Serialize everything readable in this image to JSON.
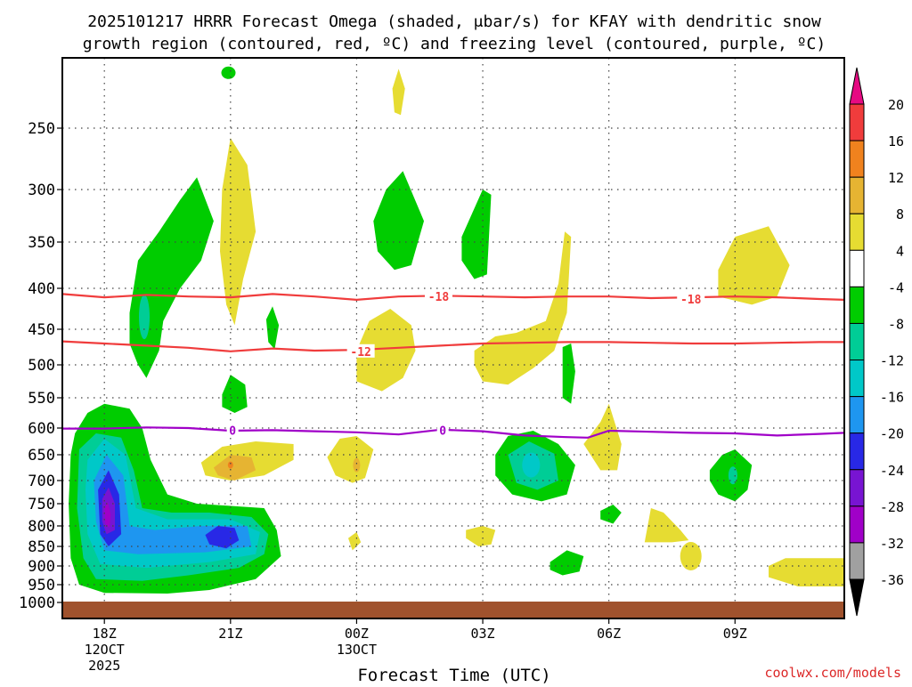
{
  "chart_data": {
    "type": "contour",
    "title_line1": "2025101217 HRRR Forecast Omega (shaded, μbar/s) for KFAY with dendritic snow",
    "title_line2": "growth region (contoured, red, ºC) and freezing level (contoured, purple, ºC)",
    "xlabel": "Forecast Time (UTC)",
    "credit": "coolwx.com/models",
    "xlim": [
      17,
      35.6
    ],
    "y_levels": [
      250,
      300,
      350,
      400,
      450,
      500,
      550,
      600,
      650,
      700,
      750,
      800,
      850,
      900,
      950,
      1000
    ],
    "y_grid_levels": [
      250,
      300,
      350,
      400,
      450,
      500,
      550,
      600,
      650,
      700,
      750,
      800,
      850,
      900,
      950
    ],
    "x_ticks": [
      {
        "hour": 18,
        "lines": [
          "18Z",
          "12OCT",
          "2025"
        ]
      },
      {
        "hour": 21,
        "lines": [
          "21Z"
        ]
      },
      {
        "hour": 24,
        "lines": [
          "00Z",
          "13OCT"
        ]
      },
      {
        "hour": 27,
        "lines": [
          "03Z"
        ]
      },
      {
        "hour": 30,
        "lines": [
          "06Z"
        ]
      },
      {
        "hour": 33,
        "lines": [
          "09Z"
        ]
      }
    ],
    "colorbar": {
      "labels": [
        "20",
        "16",
        "12",
        "8",
        "4",
        "-4",
        "-8",
        "-12",
        "-16",
        "-20",
        "-24",
        "-28",
        "-32",
        "-36"
      ],
      "bands": [
        {
          "from": 16,
          "to": 20,
          "color": "#f03c3c"
        },
        {
          "from": 12,
          "to": 16,
          "color": "#f0821e"
        },
        {
          "from": 8,
          "to": 12,
          "color": "#e6b432"
        },
        {
          "from": 4,
          "to": 8,
          "color": "#e6dc32"
        },
        {
          "from": -4,
          "to": 4,
          "color": "#ffffff"
        },
        {
          "from": -8,
          "to": -4,
          "color": "#00cc00"
        },
        {
          "from": -12,
          "to": -8,
          "color": "#00cd96"
        },
        {
          "from": -16,
          "to": -12,
          "color": "#00c8c8"
        },
        {
          "from": -20,
          "to": -16,
          "color": "#1e96f0"
        },
        {
          "from": -24,
          "to": -20,
          "color": "#2828e6"
        },
        {
          "from": -28,
          "to": -24,
          "color": "#7814d2"
        },
        {
          "from": -32,
          "to": -28,
          "color": "#a000c8"
        },
        {
          "from": -36,
          "to": -32,
          "color": "#a0a0a0"
        }
      ],
      "top_arrow_color": "#e60a82",
      "bottom_arrow_color": "#000000"
    },
    "contours": [
      {
        "label": "-18",
        "color": "#f03c3c",
        "label_positions": [
          [
            25.95,
            410
          ],
          [
            31.95,
            413
          ]
        ],
        "points": [
          [
            17,
            407
          ],
          [
            18,
            411
          ],
          [
            19,
            408
          ],
          [
            20,
            410
          ],
          [
            21,
            411
          ],
          [
            22,
            407
          ],
          [
            23,
            410
          ],
          [
            24,
            414
          ],
          [
            25,
            410
          ],
          [
            26,
            409
          ],
          [
            27,
            410
          ],
          [
            28,
            411
          ],
          [
            29,
            410
          ],
          [
            30,
            410
          ],
          [
            31,
            412
          ],
          [
            32,
            411
          ],
          [
            33,
            410
          ],
          [
            34,
            411
          ],
          [
            35,
            413
          ],
          [
            35.6,
            414
          ]
        ]
      },
      {
        "label": "-12",
        "color": "#f03c3c",
        "label_positions": [
          [
            24.1,
            481
          ]
        ],
        "points": [
          [
            17,
            467
          ],
          [
            18,
            470
          ],
          [
            19,
            473
          ],
          [
            20,
            476
          ],
          [
            21,
            481
          ],
          [
            22,
            477
          ],
          [
            23,
            480
          ],
          [
            24,
            479
          ],
          [
            25,
            476
          ],
          [
            26,
            473
          ],
          [
            27,
            470
          ],
          [
            28,
            469
          ],
          [
            29,
            468
          ],
          [
            30,
            468
          ],
          [
            31,
            469
          ],
          [
            32,
            470
          ],
          [
            33,
            470
          ],
          [
            34,
            469
          ],
          [
            35,
            468
          ],
          [
            35.6,
            468
          ]
        ]
      },
      {
        "label": "0",
        "color": "#a000c8",
        "label_positions": [
          [
            21.05,
            604
          ],
          [
            26.05,
            604
          ]
        ],
        "points": [
          [
            17,
            601
          ],
          [
            18,
            601
          ],
          [
            19,
            599
          ],
          [
            20,
            600
          ],
          [
            21,
            605
          ],
          [
            22,
            604
          ],
          [
            23,
            606
          ],
          [
            24,
            608
          ],
          [
            25,
            612
          ],
          [
            26,
            603
          ],
          [
            27,
            606
          ],
          [
            28,
            614
          ],
          [
            29,
            617
          ],
          [
            29.5,
            618
          ],
          [
            30,
            605
          ],
          [
            31,
            607
          ],
          [
            32,
            609
          ],
          [
            33,
            610
          ],
          [
            34,
            614
          ],
          [
            35,
            611
          ],
          [
            35.6,
            609
          ]
        ]
      }
    ],
    "ground_color": "#a0522d"
  }
}
